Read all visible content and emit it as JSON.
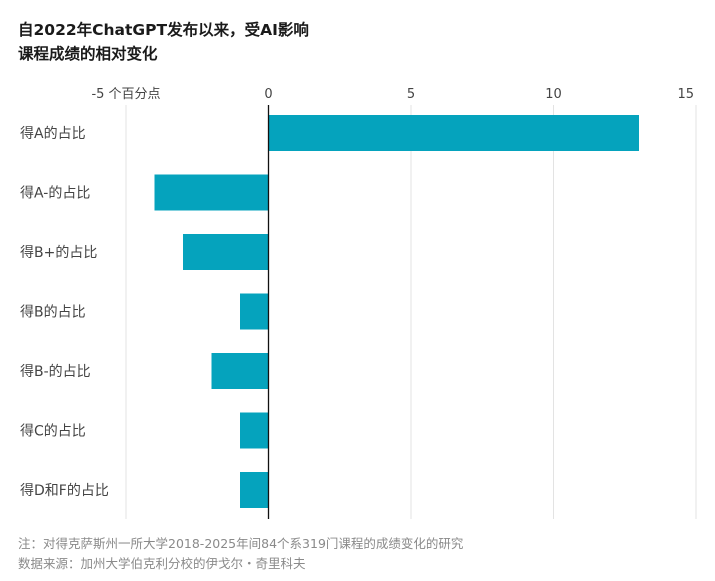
{
  "title": {
    "line1": "自2022年ChatGPT发布以来，受AI影响",
    "line2": "课程成绩的相对变化"
  },
  "colors": {
    "bar": "#05a3bd",
    "grid": "#e3e3e3",
    "axis": "#111111",
    "text": "#444444",
    "footer": "#8a8a8a"
  },
  "chart_data": {
    "type": "bar",
    "orientation": "horizontal",
    "categories": [
      "得A的占比",
      "得A-的占比",
      "得B+的占比",
      "得B的占比",
      "得B-的占比",
      "得C的占比",
      "得D和F的占比"
    ],
    "values": [
      13.0,
      -4.0,
      -3.0,
      -1.0,
      -2.0,
      -1.0,
      -1.0
    ],
    "xlim": [
      -5,
      15
    ],
    "xticks": [
      -5,
      0,
      5,
      10,
      15
    ],
    "xtick_labels": [
      "-5 个百分点",
      "0",
      "5",
      "10",
      "15"
    ],
    "grid": true,
    "xlabel": "",
    "ylabel": ""
  },
  "footer": {
    "note": "注：对得克萨斯州一所大学2018-2025年间84个系319门课程的成绩变化的研究",
    "source": "数据来源：加州大学伯克利分校的伊戈尔・奇里科夫"
  }
}
